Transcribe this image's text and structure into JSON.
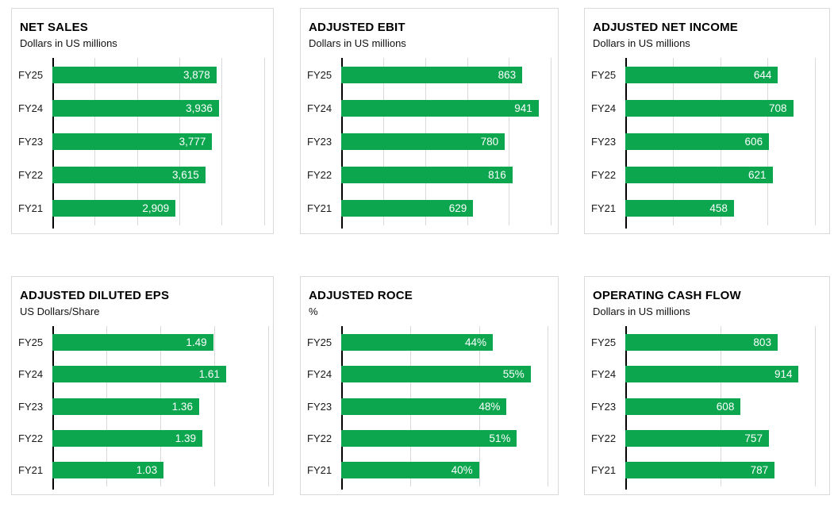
{
  "page": {
    "background": "#ffffff"
  },
  "colors": {
    "bar_green": "#0CA64F",
    "bar_label_text": "#ffffff",
    "card_border": "#d9d9d9",
    "gridline": "#d9d9d9",
    "axis_line": "#000000",
    "title_text": "#000000"
  },
  "chart_data": [
    {
      "type": "bar",
      "orientation": "horizontal",
      "title": "NET SALES",
      "subtitle": "Dollars in US millions",
      "categories": [
        "FY25",
        "FY24",
        "FY23",
        "FY22",
        "FY21"
      ],
      "values": [
        3878,
        3936,
        3777,
        3615,
        2909
      ],
      "value_labels": [
        "3,878",
        "3,936",
        "3,777",
        "3,615",
        "2,909"
      ],
      "xlim": [
        0,
        5100
      ],
      "gridlines": [
        1000,
        2000,
        3000,
        4000,
        5000
      ],
      "legend": "none"
    },
    {
      "type": "bar",
      "orientation": "horizontal",
      "title": "ADJUSTED EBIT",
      "subtitle": "Dollars in US millions",
      "categories": [
        "FY25",
        "FY24",
        "FY23",
        "FY22",
        "FY21"
      ],
      "values": [
        863,
        941,
        780,
        816,
        629
      ],
      "value_labels": [
        "863",
        "941",
        "780",
        "816",
        "629"
      ],
      "xlim": [
        0,
        1010
      ],
      "gridlines": [
        200,
        400,
        600,
        800,
        1000
      ],
      "legend": "none"
    },
    {
      "type": "bar",
      "orientation": "horizontal",
      "title": "ADJUSTED NET INCOME",
      "subtitle": "Dollars in US millions",
      "categories": [
        "FY25",
        "FY24",
        "FY23",
        "FY22",
        "FY21"
      ],
      "values": [
        644,
        708,
        606,
        621,
        458
      ],
      "value_labels": [
        "644",
        "708",
        "606",
        "621",
        "458"
      ],
      "xlim": [
        0,
        840
      ],
      "gridlines": [
        200,
        400,
        600,
        800
      ],
      "legend": "none"
    },
    {
      "type": "bar",
      "orientation": "horizontal",
      "title": "ADJUSTED DILUTED EPS",
      "subtitle": "US Dollars/Share",
      "categories": [
        "FY25",
        "FY24",
        "FY23",
        "FY22",
        "FY21"
      ],
      "values": [
        1.49,
        1.61,
        1.36,
        1.39,
        1.03
      ],
      "value_labels": [
        "1.49",
        "1.61",
        "1.36",
        "1.39",
        "1.03"
      ],
      "xlim": [
        0,
        2.0
      ],
      "gridlines": [
        0.5,
        1.0,
        1.5,
        2.0
      ],
      "legend": "none"
    },
    {
      "type": "bar",
      "orientation": "horizontal",
      "title": "ADJUSTED ROCE",
      "subtitle": "%",
      "categories": [
        "FY25",
        "FY24",
        "FY23",
        "FY22",
        "FY21"
      ],
      "values": [
        44,
        55,
        48,
        51,
        40
      ],
      "value_labels": [
        "44%",
        "55%",
        "48%",
        "51%",
        "40%"
      ],
      "xlim": [
        0,
        61.5
      ],
      "gridlines": [
        20,
        40,
        60
      ],
      "legend": "none"
    },
    {
      "type": "bar",
      "orientation": "horizontal",
      "title": "OPERATING CASH FLOW",
      "subtitle": "Dollars in US millions",
      "categories": [
        "FY25",
        "FY24",
        "FY23",
        "FY22",
        "FY21"
      ],
      "values": [
        803,
        914,
        608,
        757,
        787
      ],
      "value_labels": [
        "803",
        "914",
        "608",
        "757",
        "787"
      ],
      "xlim": [
        0,
        1050
      ],
      "gridlines": [
        500,
        1000
      ],
      "legend": "none"
    }
  ]
}
